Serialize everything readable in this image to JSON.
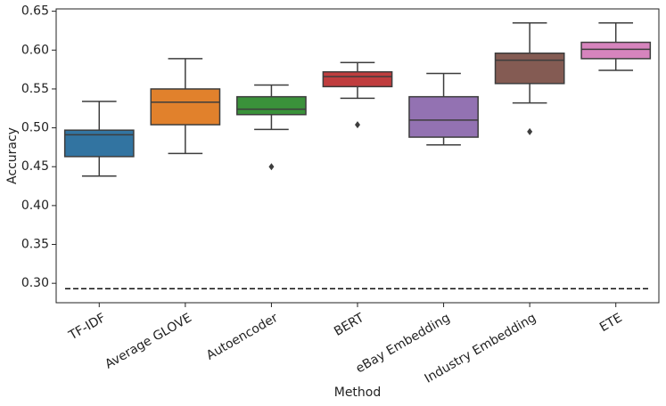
{
  "chart_data": {
    "type": "box",
    "x_label": "Method",
    "y_label": "Accuracy",
    "categories": [
      "TF-IDF",
      "Average GLOVE",
      "Autoencoder",
      "BERT",
      "eBay Embedding",
      "Industry Embedding",
      "ETE"
    ],
    "boxes": [
      {
        "color": "#3274a1",
        "whisker_low": 0.438,
        "q1": 0.463,
        "median": 0.491,
        "q3": 0.497,
        "whisker_high": 0.534,
        "outliers": []
      },
      {
        "color": "#e1812c",
        "whisker_low": 0.467,
        "q1": 0.504,
        "median": 0.533,
        "q3": 0.55,
        "whisker_high": 0.589,
        "outliers": []
      },
      {
        "color": "#3a923a",
        "whisker_low": 0.498,
        "q1": 0.517,
        "median": 0.524,
        "q3": 0.54,
        "whisker_high": 0.555,
        "outliers": [
          0.45
        ]
      },
      {
        "color": "#c03d3e",
        "whisker_low": 0.538,
        "q1": 0.553,
        "median": 0.566,
        "q3": 0.572,
        "whisker_high": 0.584,
        "outliers": [
          0.504
        ]
      },
      {
        "color": "#9372b2",
        "whisker_low": 0.478,
        "q1": 0.488,
        "median": 0.51,
        "q3": 0.54,
        "whisker_high": 0.57,
        "outliers": []
      },
      {
        "color": "#845b53",
        "whisker_low": 0.532,
        "q1": 0.557,
        "median": 0.587,
        "q3": 0.596,
        "whisker_high": 0.635,
        "outliers": [
          0.495
        ]
      },
      {
        "color": "#d684bd",
        "whisker_low": 0.574,
        "q1": 0.589,
        "median": 0.601,
        "q3": 0.61,
        "whisker_high": 0.635,
        "outliers": []
      }
    ],
    "reference_line": 0.293,
    "ylim": [
      0.275,
      0.653
    ],
    "yticks": [
      {
        "value": 0.3,
        "label": "0.30"
      },
      0.35,
      {
        "value": 0.4,
        "label": "0.40"
      },
      0.45,
      {
        "value": 0.5,
        "label": "0.50"
      },
      0.55,
      {
        "value": 0.6,
        "label": "0.60"
      },
      0.65
    ]
  }
}
